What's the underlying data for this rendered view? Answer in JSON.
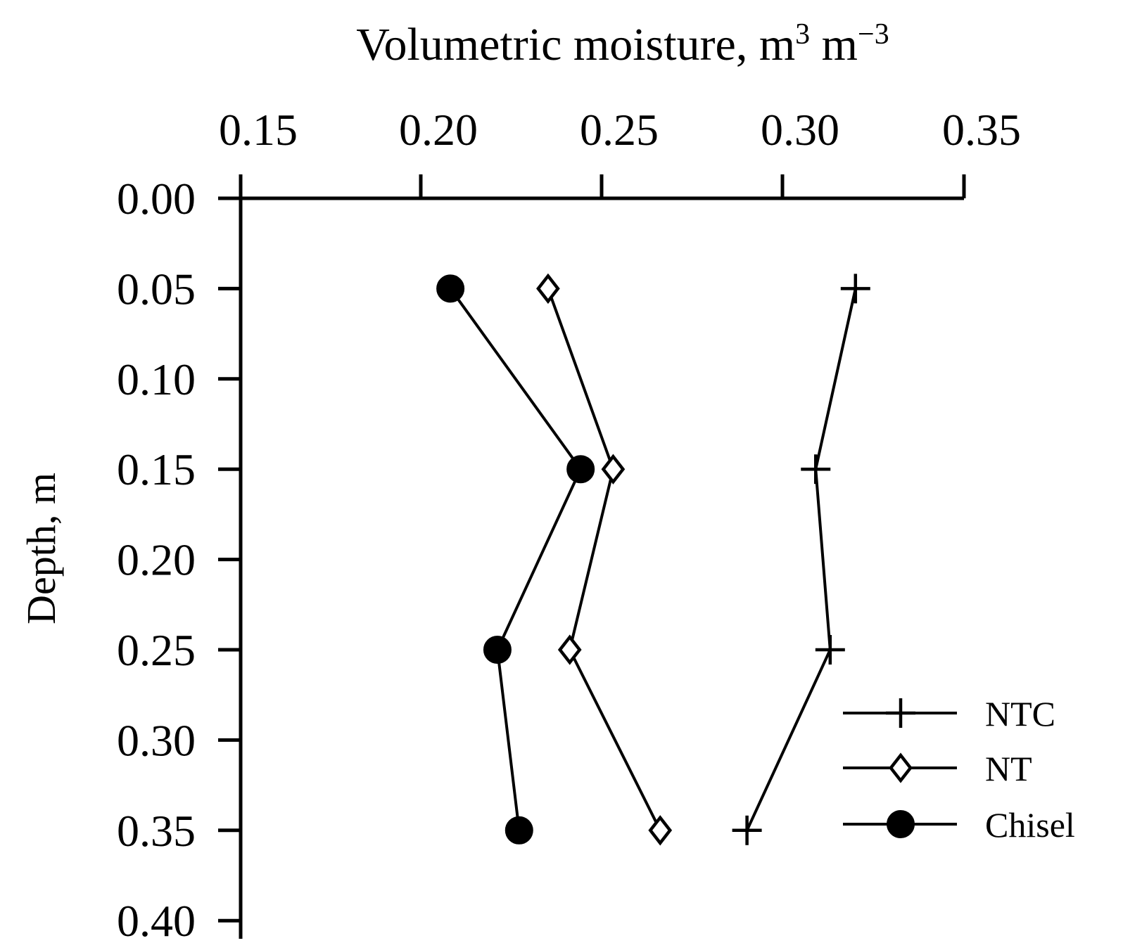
{
  "chart_data": {
    "type": "line",
    "orientation": "vertical-profile",
    "title": "",
    "xlabel": "Volumetric moisture, m³ m⁻³",
    "ylabel": "Depth, m",
    "xlim": [
      0.15,
      0.35
    ],
    "ylim": [
      0.0,
      0.4
    ],
    "x_axis_position": "top",
    "y_axis_inverted": true,
    "grid": false,
    "legend_position": "bottom-right",
    "x_ticks": [
      "0.15",
      "0.20",
      "0.25",
      "0.30",
      "0.35"
    ],
    "y_ticks": [
      "0.00",
      "0.05",
      "0.10",
      "0.15",
      "0.20",
      "0.25",
      "0.30",
      "0.35",
      "0.40"
    ],
    "depths": [
      0.05,
      0.15,
      0.25,
      0.35
    ],
    "series": [
      {
        "name": "NTC",
        "marker": "plus",
        "moisture": [
          0.32,
          0.309,
          0.313,
          0.29
        ]
      },
      {
        "name": "NT",
        "marker": "open-diamond",
        "moisture": [
          0.235,
          0.253,
          0.241,
          0.266
        ]
      },
      {
        "name": "Chisel",
        "marker": "filled-circle",
        "moisture": [
          0.208,
          0.244,
          0.221,
          0.227
        ]
      }
    ]
  }
}
